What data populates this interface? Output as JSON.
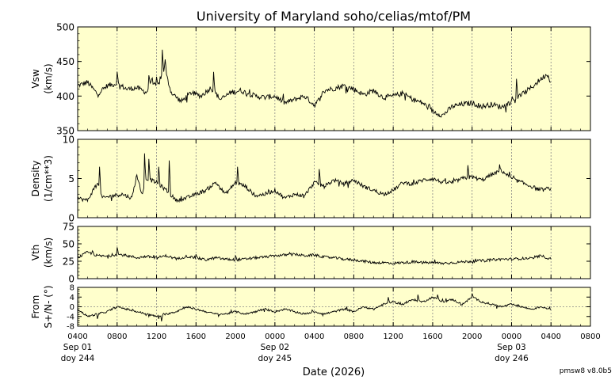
{
  "title": "University of Maryland  soho/celias/mtof/PM",
  "version": "pmsw8 v8.0b5",
  "xlabel": "Date (2026)",
  "colors": {
    "panel_bg": "#ffffcc",
    "line": "#000000",
    "grid": "#888888"
  },
  "x_ticks": [
    "0400",
    "0800",
    "1200",
    "1600",
    "2000",
    "0000",
    "0400",
    "0800",
    "1200",
    "1600",
    "2000",
    "0000",
    "0400",
    "0800"
  ],
  "date_labels": [
    {
      "line1": "Sep 01",
      "line2": "doy 244"
    },
    {
      "line1": "Sep 02",
      "line2": "doy 245"
    },
    {
      "line1": "Sep 03",
      "line2": "doy 246"
    }
  ],
  "chart_data": [
    {
      "type": "line",
      "id": "vsw",
      "ylabel": "Vsw\n(km/s)",
      "ylim": [
        350,
        500
      ],
      "yticks": [
        "350",
        "400",
        "450",
        "500"
      ],
      "grid": "vertical dotted",
      "xlim_hours": [
        4,
        56
      ],
      "data_end_hours": 52,
      "anchors": [
        [
          4,
          415
        ],
        [
          5,
          420
        ],
        [
          6,
          403
        ],
        [
          7,
          415
        ],
        [
          8,
          418
        ],
        [
          9,
          410
        ],
        [
          10,
          412
        ],
        [
          11,
          405
        ],
        [
          11.5,
          425
        ],
        [
          12,
          410
        ],
        [
          12.8,
          440
        ],
        [
          13.5,
          405
        ],
        [
          14.5,
          392
        ],
        [
          15.5,
          405
        ],
        [
          16.5,
          400
        ],
        [
          17.5,
          412
        ],
        [
          18.5,
          395
        ],
        [
          19.5,
          405
        ],
        [
          20.5,
          408
        ],
        [
          22,
          400
        ],
        [
          23,
          398
        ],
        [
          24,
          400
        ],
        [
          25,
          390
        ],
        [
          26,
          395
        ],
        [
          27,
          400
        ],
        [
          28,
          387
        ],
        [
          28.5,
          395
        ],
        [
          29,
          408
        ],
        [
          30,
          411
        ],
        [
          31,
          415
        ],
        [
          32,
          410
        ],
        [
          33,
          402
        ],
        [
          34,
          408
        ],
        [
          35,
          398
        ],
        [
          36,
          400
        ],
        [
          37,
          404
        ],
        [
          38,
          395
        ],
        [
          39,
          390
        ],
        [
          40,
          378
        ],
        [
          41,
          372
        ],
        [
          42,
          385
        ],
        [
          43,
          388
        ],
        [
          44,
          390
        ],
        [
          45,
          385
        ],
        [
          46,
          388
        ],
        [
          47,
          384
        ],
        [
          48,
          392
        ],
        [
          49,
          402
        ],
        [
          50,
          412
        ],
        [
          51,
          425
        ],
        [
          51.6,
          432
        ],
        [
          52,
          420
        ]
      ],
      "spikes": [
        [
          12.6,
          467
        ],
        [
          12.9,
          453
        ],
        [
          17.8,
          435
        ],
        [
          12,
          428
        ],
        [
          8,
          435
        ],
        [
          11.2,
          430
        ],
        [
          48.5,
          425
        ]
      ]
    },
    {
      "type": "line",
      "id": "density",
      "ylabel": "Density\n(1/cm**3)",
      "ylim": [
        0,
        10
      ],
      "yticks": [
        "0",
        "5",
        "10"
      ],
      "grid": "vertical dotted",
      "xlim_hours": [
        4,
        56
      ],
      "data_end_hours": 52,
      "anchors": [
        [
          4,
          2.5
        ],
        [
          5,
          2.2
        ],
        [
          6,
          4.5
        ],
        [
          6.5,
          2.5
        ],
        [
          7.5,
          2.8
        ],
        [
          8.5,
          3.0
        ],
        [
          9.5,
          2.5
        ],
        [
          10,
          5.5
        ],
        [
          10.5,
          3.0
        ],
        [
          11,
          5.0
        ],
        [
          12,
          4.5
        ],
        [
          13,
          3.5
        ],
        [
          14,
          2.2
        ],
        [
          15,
          2.5
        ],
        [
          16,
          3.0
        ],
        [
          17,
          3.5
        ],
        [
          18,
          4.5
        ],
        [
          19,
          3.0
        ],
        [
          20,
          4.5
        ],
        [
          21,
          4.0
        ],
        [
          22,
          2.8
        ],
        [
          23,
          3.0
        ],
        [
          24,
          3.5
        ],
        [
          25,
          2.5
        ],
        [
          26,
          3.0
        ],
        [
          27,
          2.8
        ],
        [
          28,
          4.5
        ],
        [
          29,
          4.0
        ],
        [
          30,
          4.8
        ],
        [
          31,
          4.3
        ],
        [
          32,
          4.8
        ],
        [
          33,
          4.0
        ],
        [
          34,
          3.5
        ],
        [
          35,
          3.0
        ],
        [
          36,
          3.5
        ],
        [
          37,
          4.5
        ],
        [
          38,
          4.3
        ],
        [
          39,
          4.8
        ],
        [
          40,
          5.0
        ],
        [
          41,
          4.5
        ],
        [
          42,
          4.5
        ],
        [
          43,
          5.0
        ],
        [
          44,
          5.2
        ],
        [
          45,
          4.8
        ],
        [
          46,
          5.5
        ],
        [
          47,
          6.0
        ],
        [
          48,
          5.0
        ],
        [
          49,
          4.5
        ],
        [
          50,
          4.0
        ],
        [
          51,
          3.5
        ],
        [
          52,
          3.8
        ]
      ],
      "spikes": [
        [
          6.2,
          6.5
        ],
        [
          10.8,
          8.2
        ],
        [
          11.2,
          7.5
        ],
        [
          13.3,
          7.3
        ],
        [
          12.2,
          6.5
        ],
        [
          20.2,
          6.5
        ],
        [
          28.5,
          6.2
        ],
        [
          43.6,
          6.7
        ],
        [
          46.8,
          6.8
        ]
      ]
    },
    {
      "type": "line",
      "id": "vth",
      "ylabel": "Vth\n(km/s)",
      "ylim": [
        0,
        75
      ],
      "yticks": [
        "0",
        "25",
        "50",
        "75"
      ],
      "grid": "vertical dotted",
      "xlim_hours": [
        4,
        56
      ],
      "data_end_hours": 52,
      "anchors": [
        [
          4,
          30
        ],
        [
          5,
          38
        ],
        [
          6,
          33
        ],
        [
          7,
          32
        ],
        [
          8,
          35
        ],
        [
          9,
          33
        ],
        [
          10,
          30
        ],
        [
          11,
          32
        ],
        [
          12,
          30
        ],
        [
          13,
          33
        ],
        [
          14,
          28
        ],
        [
          15,
          32
        ],
        [
          16,
          30
        ],
        [
          17,
          27
        ],
        [
          18,
          30
        ],
        [
          19,
          28
        ],
        [
          20,
          27
        ],
        [
          21,
          28
        ],
        [
          22,
          30
        ],
        [
          23,
          31
        ],
        [
          24,
          33
        ],
        [
          25,
          34
        ],
        [
          26,
          35
        ],
        [
          27,
          33
        ],
        [
          28,
          34
        ],
        [
          29,
          31
        ],
        [
          30,
          30
        ],
        [
          31,
          28
        ],
        [
          32,
          27
        ],
        [
          33,
          25
        ],
        [
          34,
          23
        ],
        [
          35,
          23
        ],
        [
          36,
          22
        ],
        [
          37,
          23
        ],
        [
          38,
          24
        ],
        [
          39,
          23
        ],
        [
          40,
          23
        ],
        [
          41,
          22
        ],
        [
          42,
          23
        ],
        [
          43,
          24
        ],
        [
          44,
          25
        ],
        [
          45,
          26
        ],
        [
          46,
          27
        ],
        [
          47,
          28
        ],
        [
          48,
          28
        ],
        [
          49,
          29
        ],
        [
          50,
          29
        ],
        [
          51,
          33
        ],
        [
          52,
          28
        ]
      ],
      "spikes": [
        [
          8,
          45
        ],
        [
          5.5,
          40
        ],
        [
          16,
          35
        ],
        [
          20,
          33
        ]
      ]
    },
    {
      "type": "line",
      "id": "from",
      "ylabel": "From\nS+/N- (°)",
      "ylim": [
        -8,
        8
      ],
      "yticks": [
        "-8",
        "-4",
        "0",
        "4",
        "8"
      ],
      "grid": "vertical dotted + zero line",
      "xlim_hours": [
        4,
        56
      ],
      "data_end_hours": 52,
      "anchors": [
        [
          4,
          -1
        ],
        [
          5,
          -4
        ],
        [
          6,
          -3
        ],
        [
          7,
          -2
        ],
        [
          8,
          0
        ],
        [
          9,
          -1
        ],
        [
          10,
          -2
        ],
        [
          11,
          -3
        ],
        [
          12,
          -4
        ],
        [
          13,
          -3
        ],
        [
          14,
          -2
        ],
        [
          15,
          0
        ],
        [
          16,
          -1
        ],
        [
          17,
          -2
        ],
        [
          18,
          -3
        ],
        [
          19,
          -3
        ],
        [
          20,
          -2
        ],
        [
          21,
          -3
        ],
        [
          22,
          -2
        ],
        [
          23,
          -1
        ],
        [
          24,
          -2
        ],
        [
          25,
          -1
        ],
        [
          26,
          -2
        ],
        [
          27,
          -3
        ],
        [
          28,
          -2
        ],
        [
          29,
          -3
        ],
        [
          30,
          -2
        ],
        [
          31,
          -1
        ],
        [
          32,
          -2
        ],
        [
          33,
          0
        ],
        [
          34,
          -1
        ],
        [
          35,
          1
        ],
        [
          36,
          2
        ],
        [
          37,
          1
        ],
        [
          38,
          3
        ],
        [
          39,
          2
        ],
        [
          40,
          4
        ],
        [
          41,
          2
        ],
        [
          42,
          3
        ],
        [
          43,
          1
        ],
        [
          44,
          4
        ],
        [
          45,
          2
        ],
        [
          46,
          1
        ],
        [
          47,
          0
        ],
        [
          48,
          1
        ],
        [
          49,
          0
        ],
        [
          50,
          -1
        ],
        [
          51,
          0
        ],
        [
          52,
          -1
        ]
      ],
      "spikes": [
        [
          35.5,
          4
        ],
        [
          38.5,
          5
        ],
        [
          40.5,
          5
        ],
        [
          44,
          5.5
        ],
        [
          12.5,
          -6
        ],
        [
          6,
          -5
        ]
      ]
    }
  ]
}
